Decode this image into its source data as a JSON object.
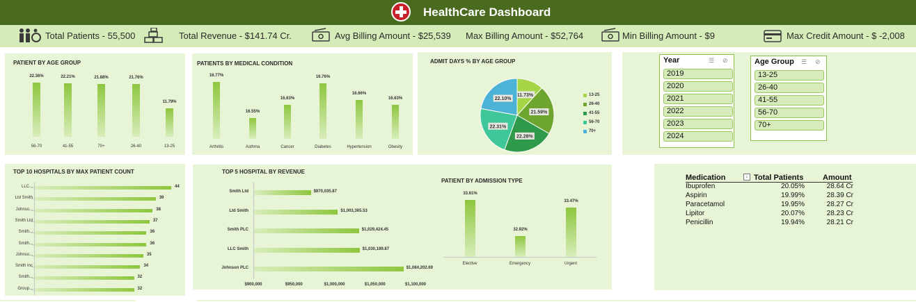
{
  "header": {
    "title": "HealthCare Dashboard"
  },
  "kpis": {
    "total_patients": "Total Patients  - 55,500",
    "total_revenue": "Total Revenue   -  $141.74 Cr.",
    "avg_billing": "Avg Billing Amount - $25,539",
    "max_billing": "Max Billing Amount - $52,764",
    "min_billing": "Min Billing Amount - $9",
    "max_credit": "Max Credit Amount -   $ -2,008"
  },
  "age_group_chart": {
    "title": "PATIENT BY AGE GROUP",
    "categories": [
      "56-70",
      "41-55",
      "70+",
      "26-40",
      "13-25"
    ],
    "labels": [
      "22.36%",
      "22.21%",
      "21.88%",
      "21.76%",
      "11.79%"
    ],
    "values": [
      22.36,
      22.21,
      21.88,
      21.76,
      11.79
    ]
  },
  "medical_condition_chart": {
    "title": "PATIENTS BY MEDICAL CONDITION",
    "categories": [
      "Arthritis",
      "Asthma",
      "Cancer",
      "Diabetes",
      "Hypertension",
      "Obesity"
    ],
    "labels": [
      "16.77%",
      "16.55%",
      "16.63%",
      "16.76%",
      "16.66%",
      "16.63%"
    ],
    "values": [
      16.77,
      16.55,
      16.63,
      16.76,
      16.66,
      16.63
    ]
  },
  "admit_days_chart": {
    "title": "ADMIT DAYS % BY AGE GROUP",
    "legend": [
      "13-25",
      "26-40",
      "41-55",
      "56-70",
      "70+"
    ],
    "labels": [
      "11.73%",
      "21.59%",
      "22.28%",
      "22.31%",
      "22.10%"
    ],
    "values": [
      11.73,
      21.59,
      22.28,
      22.31,
      22.1
    ],
    "colors": [
      "#a7d548",
      "#6ea52e",
      "#2e9a4a",
      "#3fc79a",
      "#4cb3d6"
    ]
  },
  "slicers": {
    "year": {
      "title": "Year",
      "items": [
        "2019",
        "2020",
        "2021",
        "2022",
        "2023",
        "2024"
      ]
    },
    "age_group": {
      "title": "Age Group",
      "items": [
        "13-25",
        "26-40",
        "41-55",
        "56-70",
        "70+"
      ]
    }
  },
  "top10_hospitals": {
    "title": "TOP 10 HOSPITALS BY MAX PATIENT COUNT",
    "categories": [
      "LLC...",
      "Ltd Smith",
      "Johnso...",
      "Smith Ltd",
      "Smith...",
      "Smith...",
      "Johnso...",
      "Smith Inc",
      "Smith...",
      "Group..."
    ],
    "values": [
      44,
      39,
      38,
      37,
      36,
      36,
      35,
      34,
      32,
      32
    ]
  },
  "top5_revenue": {
    "title": "TOP 5 HOSPITAL BY REVENUE",
    "categories": [
      "Smith Ltd",
      "Ltd Smith",
      "Smith PLC",
      "LLC Smith",
      "Johnson PLC"
    ],
    "labels": [
      "$970,035.87",
      "$1,003,365.53",
      "$1,029,424.45",
      "$1,030,189.87",
      "$1,084,202.69"
    ],
    "values": [
      970035.87,
      1003365.53,
      1029424.45,
      1030189.87,
      1084202.69
    ],
    "ticks": [
      "$900,000",
      "$950,000",
      "$1,000,000",
      "$1,050,000",
      "$1,100,000"
    ],
    "xlim": [
      900000,
      1100000
    ]
  },
  "admission_type_chart": {
    "title": "PATIENT BY ADMISSION TYPE",
    "categories": [
      "Elective",
      "Emergency",
      "Urgent"
    ],
    "labels": [
      "33.61%",
      "32.92%",
      "33.47%"
    ],
    "values": [
      33.61,
      32.92,
      33.47
    ]
  },
  "medication_table": {
    "headers": [
      "Medication",
      "Total Patients",
      "Amount"
    ],
    "rows": [
      [
        "Ibuprofen",
        "20.05%",
        "28.64 Cr"
      ],
      [
        "Aspirin",
        "19.99%",
        "28.39 Cr"
      ],
      [
        "Paracetamol",
        "19.95%",
        "28.27 Cr"
      ],
      [
        "Lipitor",
        "20.07%",
        "28.23 Cr"
      ],
      [
        "Penicillin",
        "19.94%",
        "28.21 Cr"
      ]
    ]
  }
}
